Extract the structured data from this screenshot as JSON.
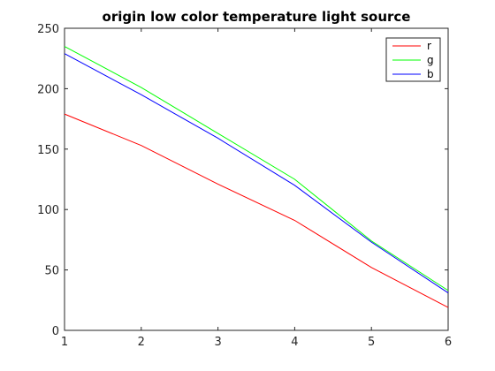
{
  "chart_data": {
    "type": "line",
    "title": "origin low color temperature light source",
    "xlabel": "",
    "ylabel": "",
    "x": [
      1,
      2,
      3,
      4,
      5,
      6
    ],
    "xlim": [
      1,
      6
    ],
    "ylim": [
      0,
      250
    ],
    "xticks": [
      "1",
      "2",
      "3",
      "4",
      "5",
      "6"
    ],
    "yticks": [
      "0",
      "50",
      "100",
      "150",
      "200",
      "250"
    ],
    "grid": false,
    "legend_position": "top-right",
    "series": [
      {
        "name": "r",
        "color": "#ff0000",
        "values": [
          179,
          153,
          121,
          91,
          52,
          19
        ]
      },
      {
        "name": "g",
        "color": "#00ff00",
        "values": [
          235,
          201,
          163,
          125,
          74,
          33
        ]
      },
      {
        "name": "b",
        "color": "#0000ff",
        "values": [
          229,
          195,
          159,
          120,
          73,
          31
        ]
      }
    ]
  }
}
